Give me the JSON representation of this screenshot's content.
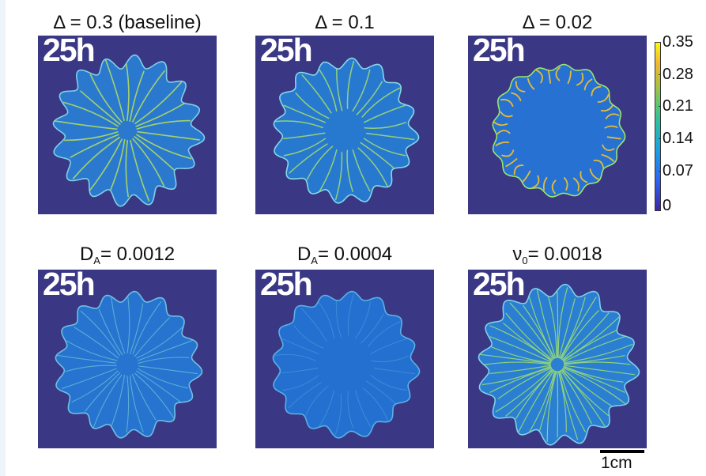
{
  "panels": [
    {
      "title_main": "Δ = 0.3 (baseline)",
      "title_sub": "",
      "title_rest": "",
      "time": "25h",
      "kind": "base"
    },
    {
      "title_main": "Δ = 0.1",
      "title_sub": "",
      "title_rest": "",
      "time": "25h",
      "kind": "mid"
    },
    {
      "title_main": "Δ = 0.02",
      "title_sub": "",
      "title_rest": "",
      "time": "25h",
      "kind": "edge"
    },
    {
      "title_main": "D",
      "title_sub": "A",
      "title_rest": "= 0.0012",
      "time": "25h",
      "kind": "faint"
    },
    {
      "title_main": "D",
      "title_sub": "A",
      "title_rest": "= 0.0004",
      "time": "25h",
      "kind": "fainter"
    },
    {
      "title_main": "ν",
      "title_sub": "0",
      "title_rest": "= 0.0018",
      "time": "25h",
      "kind": "dense"
    }
  ],
  "colorbar": {
    "ticks": [
      "0.35",
      "0.28",
      "0.21",
      "0.14",
      "0.07",
      "0"
    ],
    "colors": {
      "low": "#3e26a8",
      "high": "#f9fb0e",
      "background": "#3a3785",
      "colony": "#1f7fd6"
    }
  },
  "scale_bar": {
    "label": "1cm"
  }
}
